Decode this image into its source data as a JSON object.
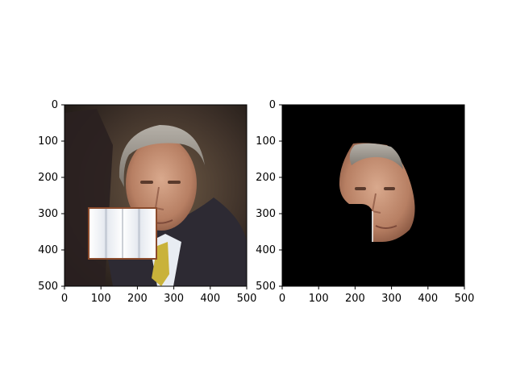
{
  "figure": {
    "panels": [
      {
        "id": "left",
        "description_hidden": true,
        "x_ticks": [
          "0",
          "100",
          "200",
          "300",
          "400",
          "500"
        ],
        "y_ticks": [
          "0",
          "100",
          "200",
          "300",
          "400",
          "500"
        ],
        "xlim": [
          0,
          500
        ],
        "ylim": [
          0,
          500
        ],
        "y_inverted": true
      },
      {
        "id": "right",
        "x_ticks": [
          "0",
          "100",
          "200",
          "300",
          "400",
          "500"
        ],
        "y_ticks": [
          "0",
          "100",
          "200",
          "300",
          "400",
          "500"
        ],
        "xlim": [
          0,
          500
        ],
        "ylim": [
          0,
          500
        ],
        "y_inverted": true
      }
    ],
    "colors": {
      "mask_background": "#000000",
      "axes": "#000000",
      "page": "#ffffff"
    }
  }
}
